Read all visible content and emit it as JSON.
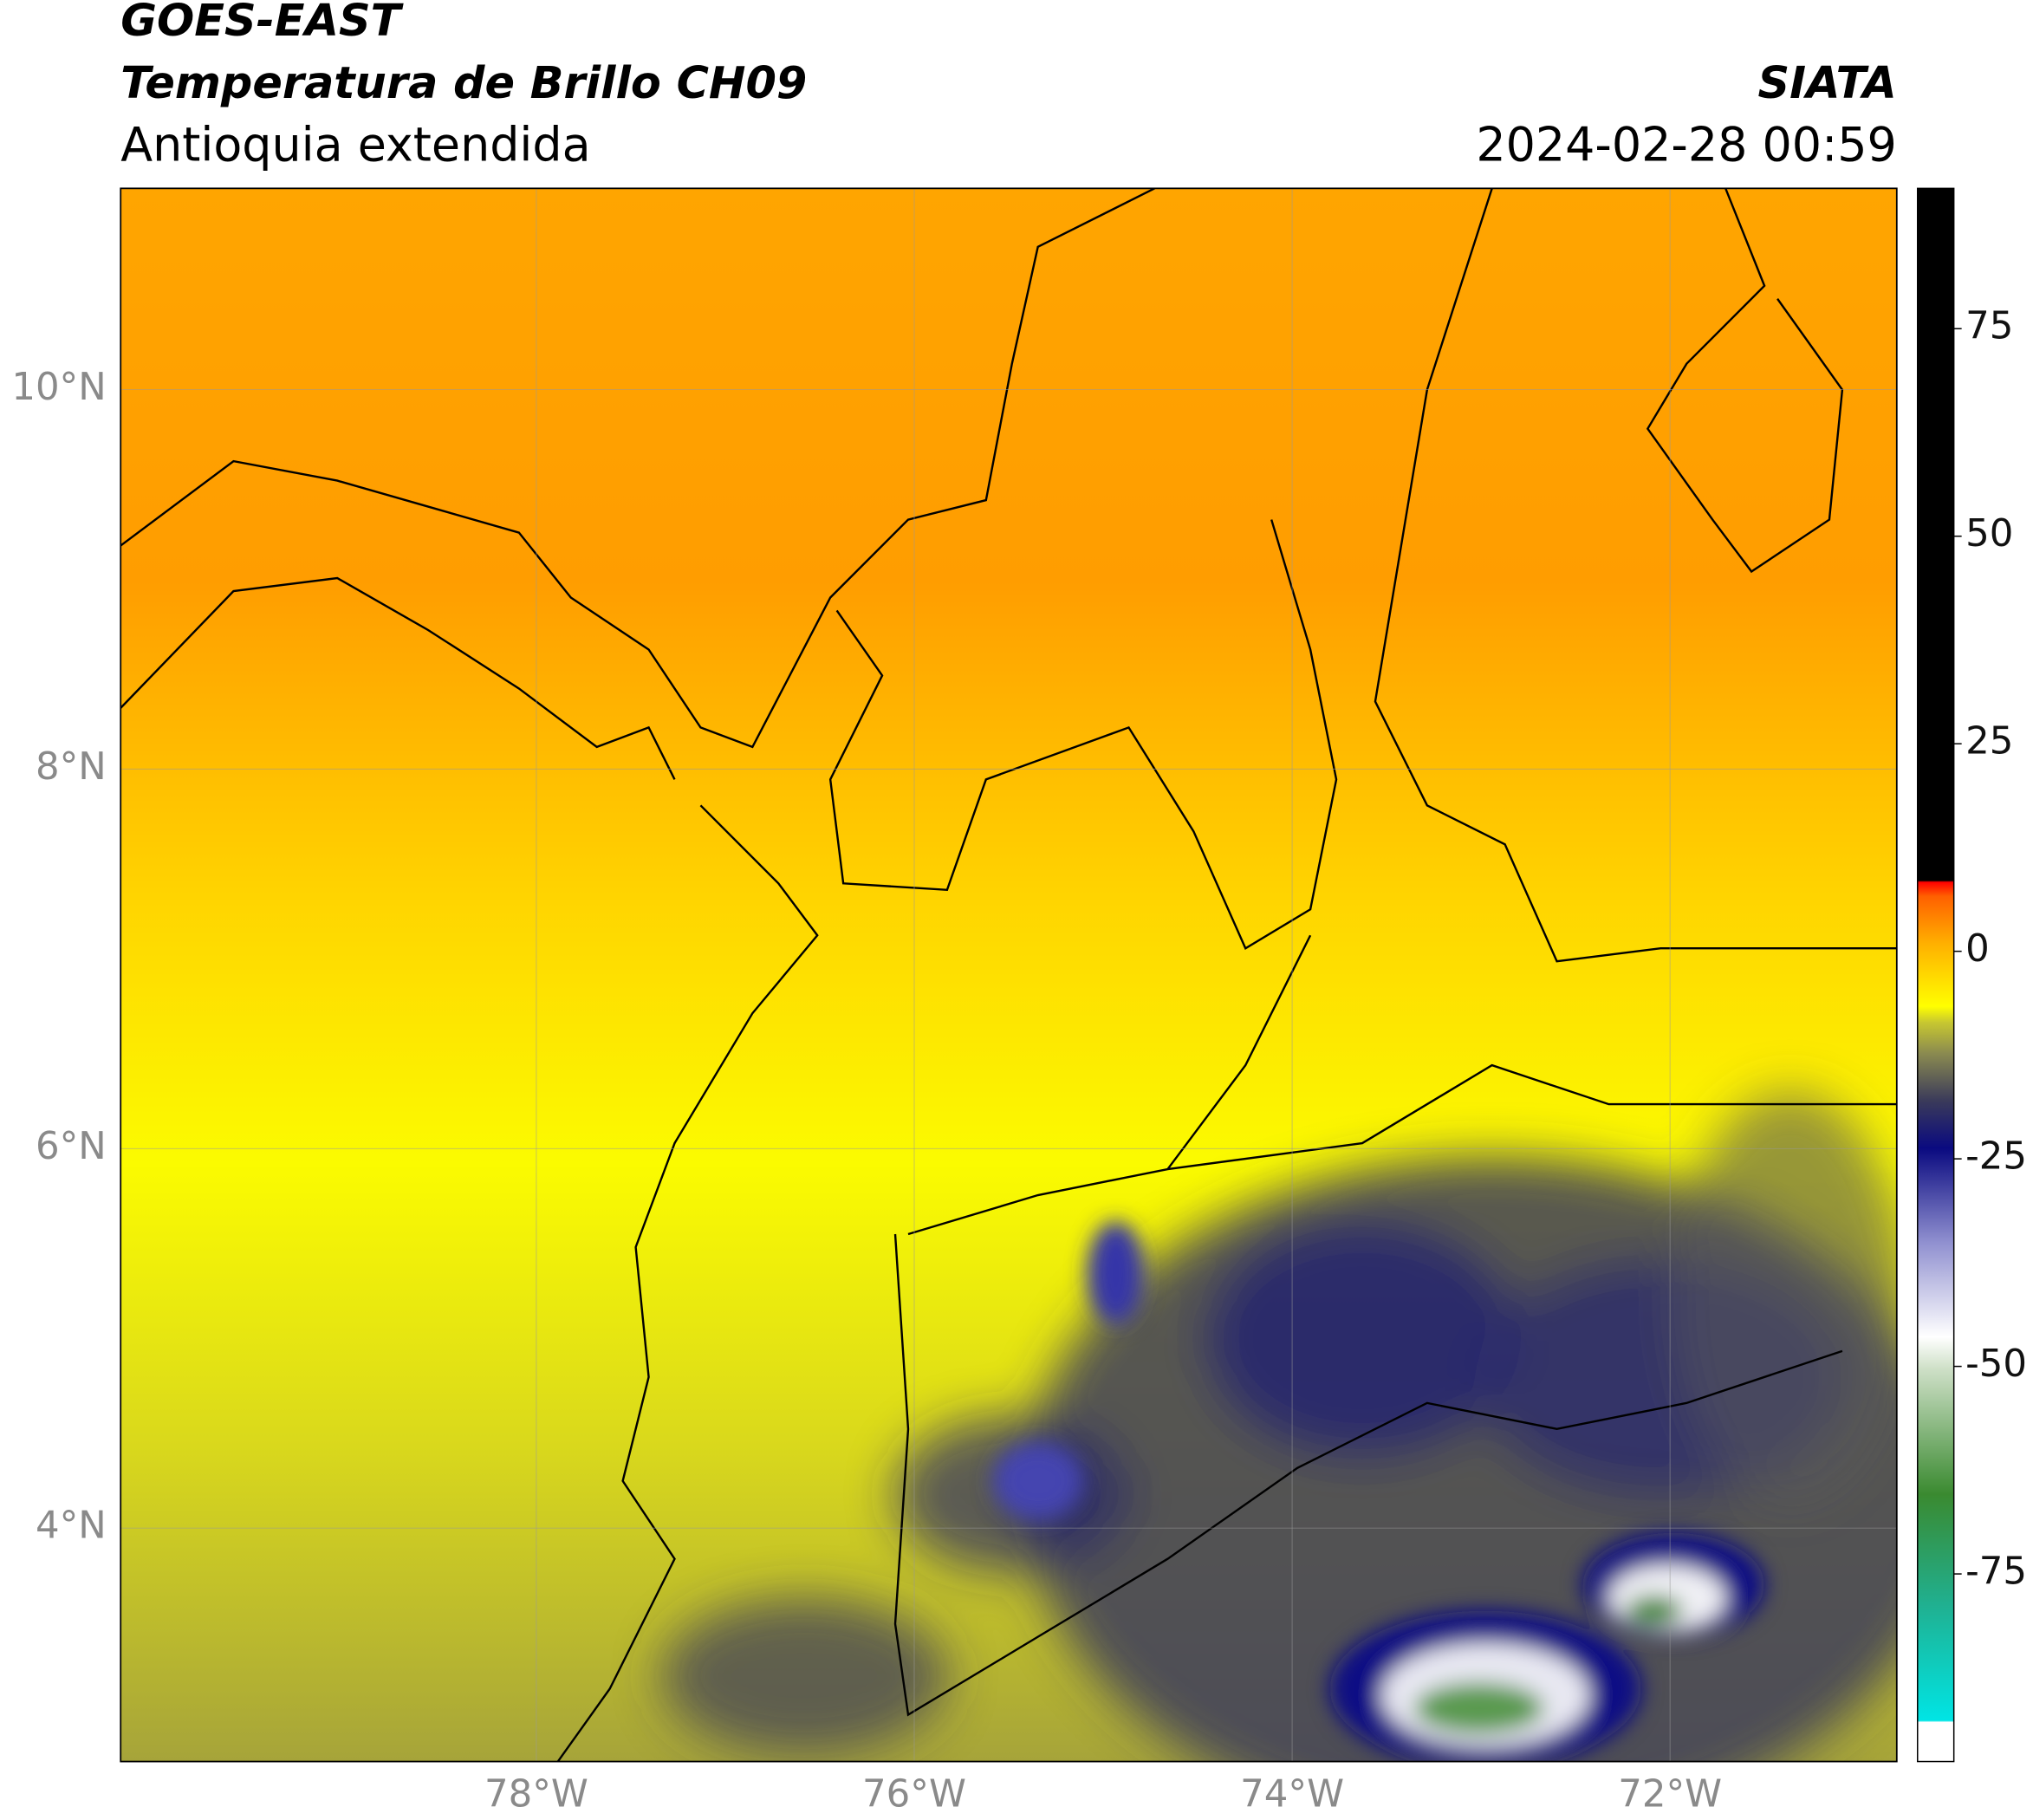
{
  "header": {
    "satellite": "GOES-EAST",
    "product": "Temperatura de Brillo CH09",
    "region": "Antioquia extendida",
    "agency": "SIATA",
    "datetime": "2024-02-28 00:59"
  },
  "map": {
    "lonlim": [
      -80.2,
      -70.8
    ],
    "latlim": [
      2.77,
      11.06
    ],
    "lon_ticks": [
      {
        "value": -78,
        "label": "78°W"
      },
      {
        "value": -76,
        "label": "76°W"
      },
      {
        "value": -74,
        "label": "74°W"
      },
      {
        "value": -72,
        "label": "72°W"
      }
    ],
    "lat_ticks": [
      {
        "value": 10,
        "label": "10°N"
      },
      {
        "value": 8,
        "label": "8°N"
      },
      {
        "value": 6,
        "label": "6°N"
      },
      {
        "value": 4,
        "label": "4°N"
      }
    ]
  },
  "colorbar": {
    "lim": [
      -97.6,
      91.9
    ],
    "ticks": [
      75,
      50,
      25,
      0,
      -25,
      -50,
      -75
    ]
  }
}
